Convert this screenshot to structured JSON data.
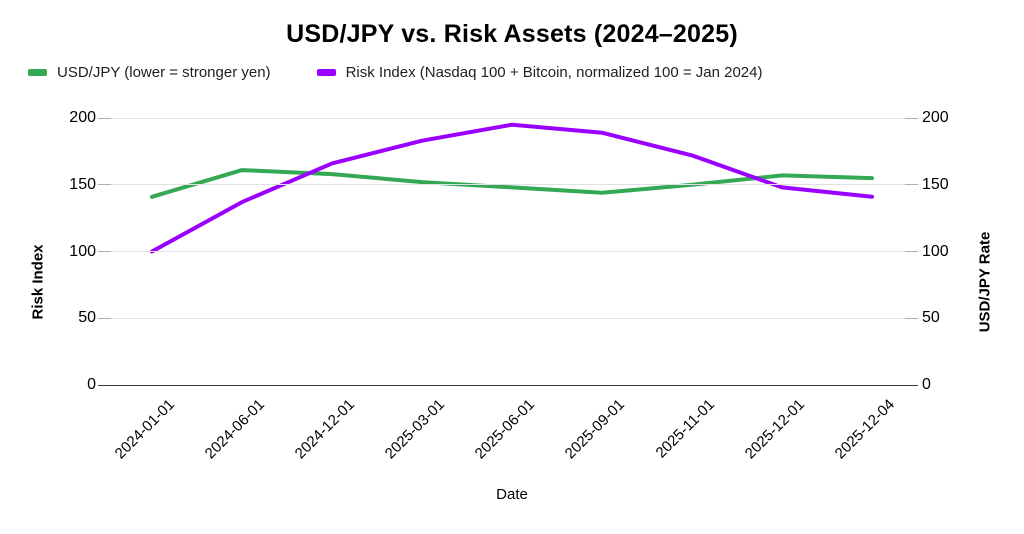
{
  "title": "USD/JPY vs. Risk Assets (2024–2025)",
  "chart_data": {
    "type": "line",
    "title": "USD/JPY vs. Risk Assets (2024–2025)",
    "xlabel": "Date",
    "ylabel_left": "Risk Index",
    "ylabel_right": "USD/JPY Rate",
    "ylim": [
      0,
      200
    ],
    "yticks": [
      0,
      50,
      100,
      150,
      200
    ],
    "grid": true,
    "legend_position": "top-left",
    "categories": [
      "2024-01-01",
      "2024-06-01",
      "2024-12-01",
      "2025-03-01",
      "2025-06-01",
      "2025-09-01",
      "2025-11-01",
      "2025-12-01",
      "2025-12-04"
    ],
    "series": [
      {
        "name": "USD/JPY (lower = stronger yen)",
        "color": "#34a853",
        "axis": "right",
        "values": [
          141,
          161,
          158,
          152,
          148,
          144,
          150,
          157,
          155
        ]
      },
      {
        "name": "Risk Index (Nasdaq 100 + Bitcoin, normalized 100 = Jan 2024)",
        "color": "#9900ff",
        "axis": "left",
        "values": [
          100,
          137,
          166,
          183,
          195,
          189,
          172,
          148,
          141
        ]
      }
    ]
  }
}
